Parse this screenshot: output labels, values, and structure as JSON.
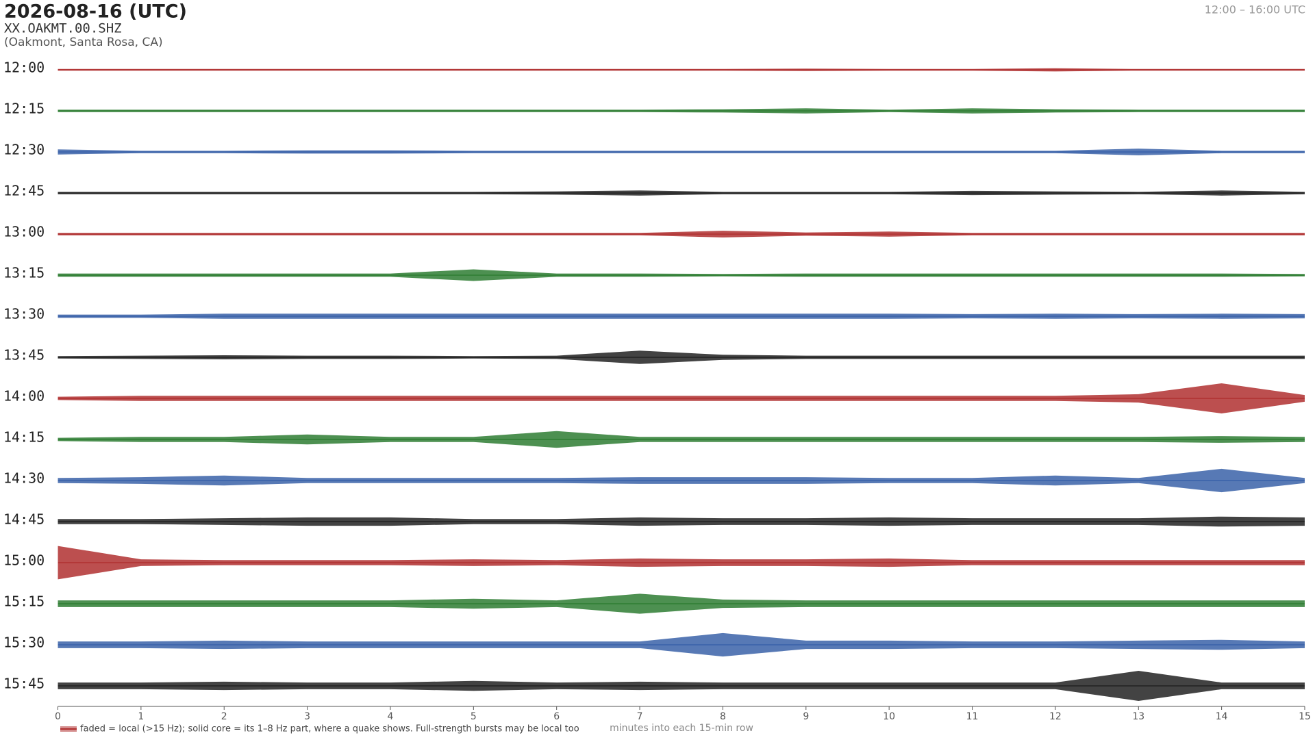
{
  "chart_data": {
    "type": "helicorder",
    "title": "2026-08-16  (UTC)",
    "subtitle": "XX.OAKMT.00.SHZ",
    "location": "(Oakmont, Santa Rosa, CA)",
    "time_range": "12:00 – 16:00 UTC",
    "xlabel": "minutes into each 15-min row",
    "note": "faded = local (>15 Hz); solid core = its 1–8 Hz part, where a quake shows. Full-strength bursts may be local too",
    "xlim": [
      0,
      15
    ],
    "xticks": [
      0,
      1,
      2,
      3,
      4,
      5,
      6,
      7,
      8,
      9,
      10,
      11,
      12,
      13,
      14,
      15
    ],
    "x": [
      0,
      1,
      2,
      3,
      4,
      5,
      6,
      7,
      8,
      9,
      10,
      11,
      12,
      13,
      14,
      15
    ],
    "series": [
      {
        "name": "12:00",
        "color": "#b03030",
        "values": [
          1,
          1,
          1,
          1,
          1,
          1,
          1,
          1,
          1,
          1.5,
          1,
          1,
          2,
          1,
          1,
          1
        ]
      },
      {
        "name": "12:15",
        "color": "#2e7d32",
        "values": [
          1.5,
          1.5,
          1.5,
          1.5,
          1.5,
          1.5,
          1.5,
          1.5,
          2,
          3,
          1.5,
          3,
          2,
          1.5,
          1.5,
          1.5
        ]
      },
      {
        "name": "12:30",
        "color": "#3a62a8",
        "values": [
          3,
          1.5,
          1.5,
          2,
          2,
          1.5,
          1.5,
          1.5,
          1.5,
          1.5,
          1.5,
          1.5,
          1.5,
          4,
          1.5,
          1.5
        ]
      },
      {
        "name": "12:45",
        "color": "#222222",
        "values": [
          1.5,
          1.5,
          1.5,
          1.5,
          1.5,
          1.5,
          2,
          3,
          1.5,
          1.5,
          1.5,
          2.5,
          2,
          1.5,
          3,
          1.5
        ]
      },
      {
        "name": "13:00",
        "color": "#b03030",
        "values": [
          1.5,
          1.5,
          1.5,
          1.5,
          1.5,
          1.5,
          1.5,
          1.5,
          4,
          2,
          3,
          1.5,
          1.5,
          1.5,
          1.5,
          1.5
        ]
      },
      {
        "name": "13:15",
        "color": "#2e7d32",
        "values": [
          2,
          2,
          2,
          2,
          2,
          7,
          2,
          2,
          1.5,
          2,
          2,
          2,
          2,
          2,
          2,
          1.5
        ]
      },
      {
        "name": "13:30",
        "color": "#3a62a8",
        "values": [
          2,
          2,
          3,
          3,
          3,
          3,
          3,
          3,
          3,
          3,
          3,
          2.5,
          3,
          2.5,
          3,
          2.5
        ]
      },
      {
        "name": "13:45",
        "color": "#222222",
        "values": [
          1.5,
          2,
          2.5,
          2,
          2,
          1.5,
          2,
          8,
          3,
          2,
          2,
          2,
          2,
          2,
          2,
          2
        ]
      },
      {
        "name": "14:00",
        "color": "#b03030",
        "values": [
          2,
          3,
          3,
          3,
          3,
          3,
          3,
          3,
          3,
          3,
          3,
          3,
          3,
          5,
          18,
          4
        ]
      },
      {
        "name": "14:15",
        "color": "#2e7d32",
        "values": [
          2,
          3,
          3,
          6,
          3,
          3,
          10,
          3,
          3,
          3,
          3,
          3,
          3,
          3,
          4,
          3
        ]
      },
      {
        "name": "14:30",
        "color": "#3a62a8",
        "values": [
          3,
          4,
          6,
          3,
          3,
          3,
          3,
          4,
          4,
          4,
          3,
          3,
          6,
          3,
          14,
          3
        ]
      },
      {
        "name": "14:45",
        "color": "#222222",
        "values": [
          3,
          3,
          4,
          5,
          5,
          3,
          3,
          5,
          4,
          4,
          5,
          4,
          4,
          4,
          6,
          5
        ]
      },
      {
        "name": "15:00",
        "color": "#b03030",
        "values": [
          20,
          4,
          3,
          3,
          3,
          4,
          3,
          5,
          4,
          4,
          5,
          3,
          3,
          3,
          3,
          3
        ]
      },
      {
        "name": "15:15",
        "color": "#2e7d32",
        "values": [
          4,
          4,
          4,
          4,
          4,
          6,
          4,
          12,
          5,
          4,
          4,
          4,
          4,
          4,
          4,
          4
        ]
      },
      {
        "name": "15:30",
        "color": "#3a62a8",
        "values": [
          4,
          4,
          5,
          4,
          4,
          4,
          4,
          4,
          14,
          5,
          5,
          4,
          4,
          5,
          6,
          4
        ]
      },
      {
        "name": "15:45",
        "color": "#222222",
        "values": [
          4,
          4,
          5,
          4,
          4,
          6,
          4,
          5,
          4,
          4,
          4,
          4,
          4,
          18,
          4,
          4
        ]
      }
    ]
  }
}
